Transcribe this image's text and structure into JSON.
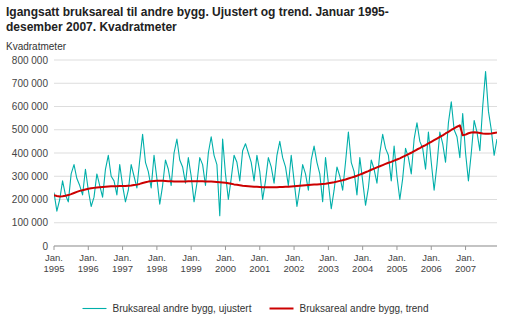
{
  "chart_data": {
    "type": "line",
    "title": "Igangsatt bruksareal til andre bygg. Ujustert og trend. Januar 1995-\ndesember 2007. Kvadratmeter",
    "ylabel": "Kvadratmeter",
    "categories": [
      "Jan.\n1995",
      null,
      null,
      null,
      null,
      null,
      null,
      null,
      null,
      null,
      null,
      null,
      "Jan.\n1996",
      null,
      null,
      null,
      null,
      null,
      null,
      null,
      null,
      null,
      null,
      null,
      "Jan.\n1997",
      null,
      null,
      null,
      null,
      null,
      null,
      null,
      null,
      null,
      null,
      null,
      "Jan.\n1998",
      null,
      null,
      null,
      null,
      null,
      null,
      null,
      null,
      null,
      null,
      null,
      "Jan.\n1999",
      null,
      null,
      null,
      null,
      null,
      null,
      null,
      null,
      null,
      null,
      null,
      "Jan.\n2000",
      null,
      null,
      null,
      null,
      null,
      null,
      null,
      null,
      null,
      null,
      null,
      "Jan.\n2001",
      null,
      null,
      null,
      null,
      null,
      null,
      null,
      null,
      null,
      null,
      null,
      "Jan.\n2002",
      null,
      null,
      null,
      null,
      null,
      null,
      null,
      null,
      null,
      null,
      null,
      "Jan.\n2003",
      null,
      null,
      null,
      null,
      null,
      null,
      null,
      null,
      null,
      null,
      null,
      "Jan.\n2004",
      null,
      null,
      null,
      null,
      null,
      null,
      null,
      null,
      null,
      null,
      null,
      "Jan.\n2005",
      null,
      null,
      null,
      null,
      null,
      null,
      null,
      null,
      null,
      null,
      null,
      "Jan.\n2006",
      null,
      null,
      null,
      null,
      null,
      null,
      null,
      null,
      null,
      null,
      null,
      "Jan.\n2007",
      null,
      null,
      null,
      null,
      null,
      null,
      null,
      null,
      null,
      null,
      null
    ],
    "series": [
      {
        "name": "Bruksareal andre bygg, ujustert",
        "color": "#00AFAA",
        "values": [
          230000,
          150000,
          200000,
          280000,
          220000,
          190000,
          310000,
          350000,
          290000,
          260000,
          220000,
          330000,
          240000,
          170000,
          210000,
          310000,
          260000,
          210000,
          330000,
          390000,
          300000,
          280000,
          220000,
          350000,
          260000,
          190000,
          240000,
          350000,
          300000,
          250000,
          370000,
          480000,
          360000,
          320000,
          250000,
          390000,
          290000,
          180000,
          260000,
          370000,
          330000,
          260000,
          400000,
          460000,
          370000,
          340000,
          270000,
          380000,
          300000,
          190000,
          270000,
          380000,
          350000,
          260000,
          400000,
          470000,
          390000,
          350000,
          130000,
          460000,
          310000,
          200000,
          290000,
          390000,
          360000,
          280000,
          410000,
          440000,
          400000,
          360000,
          280000,
          390000,
          320000,
          200000,
          280000,
          380000,
          340000,
          270000,
          390000,
          450000,
          380000,
          340000,
          260000,
          390000,
          280000,
          170000,
          250000,
          350000,
          310000,
          240000,
          370000,
          430000,
          360000,
          310000,
          190000,
          380000,
          270000,
          160000,
          240000,
          340000,
          300000,
          240000,
          360000,
          490000,
          360000,
          320000,
          220000,
          380000,
          280000,
          175000,
          250000,
          370000,
          330000,
          270000,
          400000,
          480000,
          420000,
          390000,
          280000,
          430000,
          300000,
          200000,
          290000,
          420000,
          380000,
          310000,
          460000,
          530000,
          450000,
          420000,
          330000,
          490000,
          360000,
          240000,
          350000,
          490000,
          440000,
          360000,
          530000,
          620000,
          500000,
          470000,
          380000,
          570000,
          400000,
          280000,
          400000,
          540000,
          490000,
          410000,
          600000,
          750000,
          580000,
          500000,
          390000,
          460000
        ]
      },
      {
        "name": "Bruksareal andre bygg, trend",
        "color": "#CC0000",
        "values": [
          218000,
          215000,
          213000,
          214000,
          216000,
          219000,
          223000,
          228000,
          233000,
          237000,
          240000,
          243000,
          246000,
          248000,
          250000,
          252000,
          253000,
          254000,
          255000,
          256000,
          257000,
          257000,
          257000,
          258000,
          258000,
          258000,
          259000,
          260000,
          262000,
          264000,
          267000,
          271000,
          274000,
          277000,
          279000,
          280000,
          281000,
          281000,
          281000,
          280000,
          279000,
          278000,
          277000,
          277000,
          277000,
          277000,
          277000,
          278000,
          278000,
          278000,
          278000,
          278000,
          278000,
          277000,
          277000,
          277000,
          276000,
          275000,
          274000,
          273000,
          272000,
          270000,
          268000,
          265000,
          263000,
          261000,
          259000,
          258000,
          257000,
          256000,
          255000,
          255000,
          254000,
          253000,
          253000,
          253000,
          253000,
          253000,
          253000,
          254000,
          254000,
          255000,
          255000,
          256000,
          257000,
          258000,
          259000,
          260000,
          261000,
          262000,
          263000,
          264000,
          265000,
          266000,
          267000,
          268000,
          270000,
          272000,
          274000,
          277000,
          280000,
          283000,
          286000,
          290000,
          294000,
          298000,
          302000,
          307000,
          312000,
          317000,
          322000,
          328000,
          333000,
          338000,
          343000,
          348000,
          353000,
          358000,
          362000,
          367000,
          372000,
          377000,
          383000,
          389000,
          395000,
          401000,
          408000,
          415000,
          421000,
          428000,
          434000,
          441000,
          448000,
          455000,
          462000,
          469000,
          476000,
          484000,
          491000,
          499000,
          506000,
          513000,
          519000,
          476000,
          479000,
          485000,
          488000,
          489000,
          488000,
          486000,
          484000,
          483000,
          483000,
          484000,
          486000,
          488000
        ]
      }
    ],
    "ylim": [
      0,
      800000
    ],
    "yticks": [
      0,
      {
        "value": 100000,
        "label": "100 000"
      },
      {
        "value": 200000,
        "label": "200 000"
      },
      {
        "value": 300000,
        "label": "300 000"
      },
      {
        "value": 400000,
        "label": "400 000"
      },
      {
        "value": 500000,
        "label": "500 000"
      },
      {
        "value": 600000,
        "label": "600 000"
      },
      {
        "value": 700000,
        "label": "700 000"
      },
      {
        "value": 800000,
        "label": "800 000"
      }
    ],
    "grid": true,
    "legend": "bottom"
  }
}
